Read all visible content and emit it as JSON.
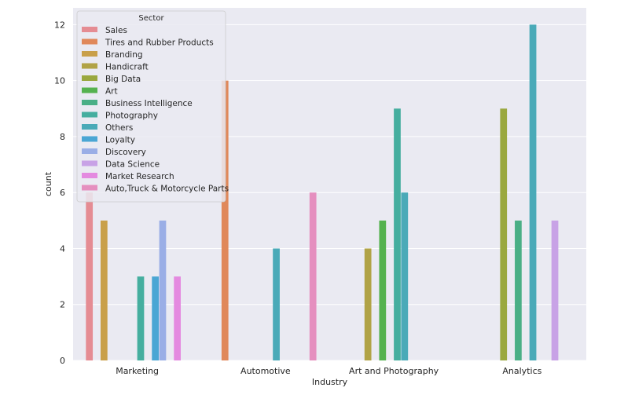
{
  "chart_data": {
    "type": "bar",
    "xlabel": "Industry",
    "ylabel": "count",
    "ylim": [
      0,
      12.6
    ],
    "yticks": [
      0,
      2,
      4,
      6,
      8,
      10,
      12
    ],
    "grid": true,
    "legend": {
      "title": "Sector",
      "placement": "top-left"
    },
    "categories": [
      "Marketing",
      "Automotive",
      "Art and Photography",
      "Analytics"
    ],
    "series": [
      {
        "name": "Sales",
        "color": "#e58c93",
        "values": [
          6,
          0,
          0,
          0
        ]
      },
      {
        "name": "Tires and Rubber Products",
        "color": "#e0885a",
        "values": [
          0,
          10,
          0,
          0
        ]
      },
      {
        "name": "Branding",
        "color": "#c9a04a",
        "values": [
          5,
          0,
          0,
          0
        ]
      },
      {
        "name": "Handicraft",
        "color": "#b1a346",
        "values": [
          0,
          0,
          4,
          0
        ]
      },
      {
        "name": "Big Data",
        "color": "#9aa83f",
        "values": [
          0,
          0,
          0,
          9
        ]
      },
      {
        "name": "Art",
        "color": "#55b24f",
        "values": [
          0,
          0,
          5,
          0
        ]
      },
      {
        "name": "Business Intelligence",
        "color": "#4aaf86",
        "values": [
          0,
          0,
          0,
          5
        ]
      },
      {
        "name": "Photography",
        "color": "#45ae9f",
        "values": [
          3,
          0,
          9,
          0
        ]
      },
      {
        "name": "Others",
        "color": "#4aaab8",
        "values": [
          0,
          4,
          6,
          12
        ]
      },
      {
        "name": "Loyalty",
        "color": "#4aa6d4",
        "values": [
          3,
          0,
          0,
          0
        ]
      },
      {
        "name": "Discovery",
        "color": "#9aaee6",
        "values": [
          5,
          0,
          0,
          0
        ]
      },
      {
        "name": "Data Science",
        "color": "#c8a2e6",
        "values": [
          0,
          0,
          0,
          5
        ]
      },
      {
        "name": "Market Research",
        "color": "#e48ae0",
        "values": [
          3,
          0,
          0,
          0
        ]
      },
      {
        "name": "Auto,Truck & Motorcycle Parts",
        "color": "#e58fbf",
        "values": [
          0,
          6,
          0,
          0
        ]
      }
    ]
  },
  "colors": {
    "plot_bg": "#eaeaf2",
    "grid": "#ffffff",
    "text": "#262626"
  }
}
